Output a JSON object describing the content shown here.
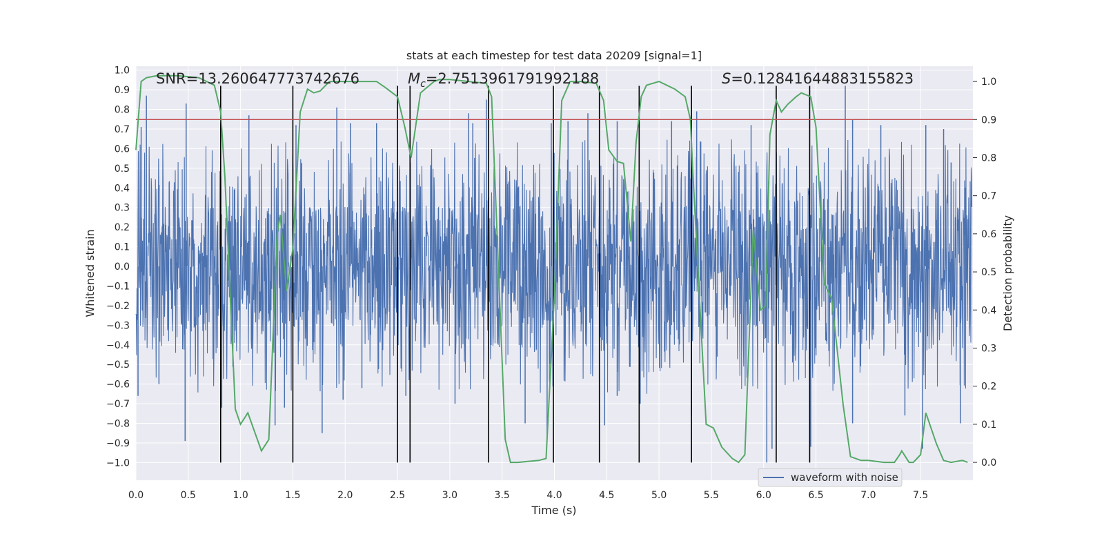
{
  "chart_data": {
    "type": "line",
    "title": "stats at each timestep for test data 20209 [signal=1]",
    "xlabel": "Time (s)",
    "ylabel": "Whitened strain",
    "y2label": "Detection probability",
    "xlim": [
      0.0,
      8.0
    ],
    "ylim": [
      -1.09,
      1.02
    ],
    "y2lim": [
      -0.047,
      1.04
    ],
    "x_ticks": [
      "0.0",
      "0.5",
      "1.0",
      "1.5",
      "2.0",
      "2.5",
      "3.0",
      "3.5",
      "4.0",
      "4.5",
      "5.0",
      "5.5",
      "6.0",
      "6.5",
      "7.0",
      "7.5"
    ],
    "y_ticks": [
      "1.0",
      "0.9",
      "0.8",
      "0.7",
      "0.6",
      "0.5",
      "0.4",
      "0.3",
      "0.2",
      "0.1",
      "0.0",
      "−0.1",
      "−0.2",
      "−0.3",
      "−0.4",
      "−0.5",
      "−0.6",
      "−0.7",
      "−0.8",
      "−0.9",
      "−1.0"
    ],
    "y2_ticks": [
      "1.0",
      "0.9",
      "0.8",
      "0.7",
      "0.6",
      "0.5",
      "0.4",
      "0.3",
      "0.2",
      "0.1",
      "0.0"
    ],
    "grid": true,
    "legend_position": "lower-right",
    "annotations": {
      "snr": "SNR=13.260647773742676",
      "mc": "=2.7513961791992188",
      "s": "=0.12841644883155823"
    },
    "threshold": 0.9,
    "vlines_x": [
      0.81,
      1.5,
      2.5,
      2.62,
      3.37,
      3.99,
      4.43,
      4.81,
      5.31,
      6.12,
      6.44
    ],
    "vline_ymax": 0.92,
    "vline_ymin": -1.0,
    "series": [
      {
        "name": "waveform with noise",
        "kind": "noise",
        "color": "#4c72b0",
        "core_band": [
          -0.44,
          0.53
        ],
        "spikes_pos": [
          [
            0.05,
            0.71
          ],
          [
            0.1,
            0.87
          ],
          [
            0.48,
            0.83
          ],
          [
            1.08,
            0.77
          ],
          [
            1.53,
            0.72
          ],
          [
            1.92,
            0.81
          ],
          [
            2.05,
            0.73
          ],
          [
            2.3,
            0.73
          ],
          [
            3.18,
            0.78
          ],
          [
            3.22,
            0.73
          ],
          [
            3.35,
            0.85
          ],
          [
            3.97,
            0.73
          ],
          [
            4.13,
            0.74
          ],
          [
            4.32,
            0.78
          ],
          [
            4.6,
            0.74
          ],
          [
            5.12,
            0.74
          ],
          [
            5.36,
            0.79
          ],
          [
            5.88,
            0.72
          ],
          [
            6.78,
            0.92
          ],
          [
            6.85,
            0.75
          ],
          [
            7.12,
            0.72
          ],
          [
            7.55,
            0.72
          ],
          [
            7.72,
            0.7
          ]
        ],
        "spikes_neg": [
          [
            0.02,
            -0.66
          ],
          [
            0.22,
            -0.6
          ],
          [
            0.47,
            -0.89
          ],
          [
            0.82,
            -0.72
          ],
          [
            1.33,
            -0.81
          ],
          [
            1.42,
            -0.72
          ],
          [
            1.78,
            -0.85
          ],
          [
            1.98,
            -0.68
          ],
          [
            2.16,
            -0.62
          ],
          [
            2.58,
            -0.66
          ],
          [
            3.05,
            -0.7
          ],
          [
            3.72,
            -0.8
          ],
          [
            3.93,
            -0.86
          ],
          [
            4.48,
            -0.81
          ],
          [
            4.6,
            -0.66
          ],
          [
            4.82,
            -0.7
          ],
          [
            5.31,
            -0.76
          ],
          [
            6.03,
            -1.0
          ],
          [
            6.08,
            -0.93
          ],
          [
            6.45,
            -0.92
          ],
          [
            6.85,
            -0.8
          ],
          [
            7.35,
            -0.76
          ],
          [
            7.52,
            -0.93
          ],
          [
            7.88,
            -0.8
          ]
        ]
      },
      {
        "name": "",
        "kind": "probability",
        "color": "#55a868",
        "axis": "right",
        "x": [
          0.0,
          0.05,
          0.1,
          0.2,
          0.4,
          0.6,
          0.75,
          0.81,
          0.85,
          0.95,
          1.0,
          1.07,
          1.2,
          1.27,
          1.35,
          1.38,
          1.44,
          1.5,
          1.57,
          1.64,
          1.7,
          1.76,
          1.85,
          2.0,
          2.3,
          2.38,
          2.5,
          2.57,
          2.63,
          2.72,
          2.85,
          2.9,
          3.0,
          3.35,
          3.4,
          3.53,
          3.58,
          3.65,
          3.85,
          3.92,
          4.0,
          4.07,
          4.15,
          4.25,
          4.4,
          4.47,
          4.52,
          4.6,
          4.66,
          4.7,
          4.73,
          4.78,
          4.83,
          4.88,
          5.0,
          5.15,
          5.25,
          5.3,
          5.32,
          5.45,
          5.52,
          5.6,
          5.7,
          5.76,
          5.82,
          5.9,
          5.97,
          6.02,
          6.06,
          6.12,
          6.17,
          6.23,
          6.31,
          6.36,
          6.45,
          6.5,
          6.58,
          6.65,
          6.76,
          6.83,
          6.93,
          7.0,
          7.15,
          7.25,
          7.3,
          7.32,
          7.39,
          7.43,
          7.5,
          7.55,
          7.65,
          7.72,
          7.79,
          7.9,
          7.95
        ],
        "y": [
          0.82,
          1.0,
          1.01,
          1.015,
          1.015,
          1.01,
          0.99,
          0.92,
          0.75,
          0.14,
          0.1,
          0.13,
          0.03,
          0.06,
          0.6,
          0.65,
          0.45,
          0.56,
          0.92,
          0.98,
          0.97,
          0.975,
          1.0,
          1.0,
          1.0,
          0.985,
          0.96,
          0.88,
          0.8,
          0.97,
          1.0,
          1.005,
          1.005,
          0.995,
          0.96,
          0.06,
          0.0,
          0.0,
          0.005,
          0.01,
          0.44,
          0.95,
          1.0,
          1.0,
          0.995,
          0.95,
          0.82,
          0.79,
          0.785,
          0.67,
          0.58,
          0.84,
          0.96,
          0.99,
          1.0,
          0.98,
          0.96,
          0.9,
          0.78,
          0.1,
          0.09,
          0.04,
          0.01,
          0.0,
          0.02,
          0.61,
          0.4,
          0.41,
          0.86,
          0.95,
          0.92,
          0.94,
          0.96,
          0.97,
          0.96,
          0.88,
          0.47,
          0.43,
          0.15,
          0.015,
          0.005,
          0.005,
          0.0,
          0.0,
          0.02,
          0.03,
          0.0,
          0.0,
          0.02,
          0.13,
          0.05,
          0.005,
          0.0,
          0.005,
          0.0
        ]
      },
      {
        "name": "",
        "kind": "threshold",
        "color": "#c44e52",
        "axis": "right"
      }
    ]
  }
}
